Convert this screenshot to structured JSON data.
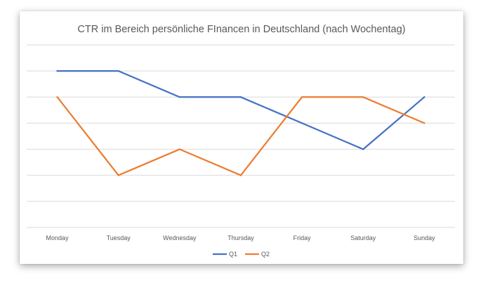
{
  "chart_data": {
    "type": "line",
    "title": "CTR im Bereich persönliche FInancen in Deutschland (nach Wochentag)",
    "xlabel": "",
    "ylabel": "",
    "categories": [
      "Monday",
      "Tuesday",
      "Wednesday",
      "Thursday",
      "Friday",
      "Saturday",
      "Sunday"
    ],
    "series": [
      {
        "name": "Q1",
        "color": "#4472C4",
        "values": [
          6,
          6,
          5,
          5,
          4,
          3,
          5
        ]
      },
      {
        "name": "Q2",
        "color": "#ED7D31",
        "values": [
          5,
          2,
          3,
          2,
          5,
          5,
          4
        ]
      }
    ],
    "ylim": [
      0,
      7
    ],
    "y_tick_labels_visible": false,
    "grid": true,
    "legend": "bottom"
  }
}
